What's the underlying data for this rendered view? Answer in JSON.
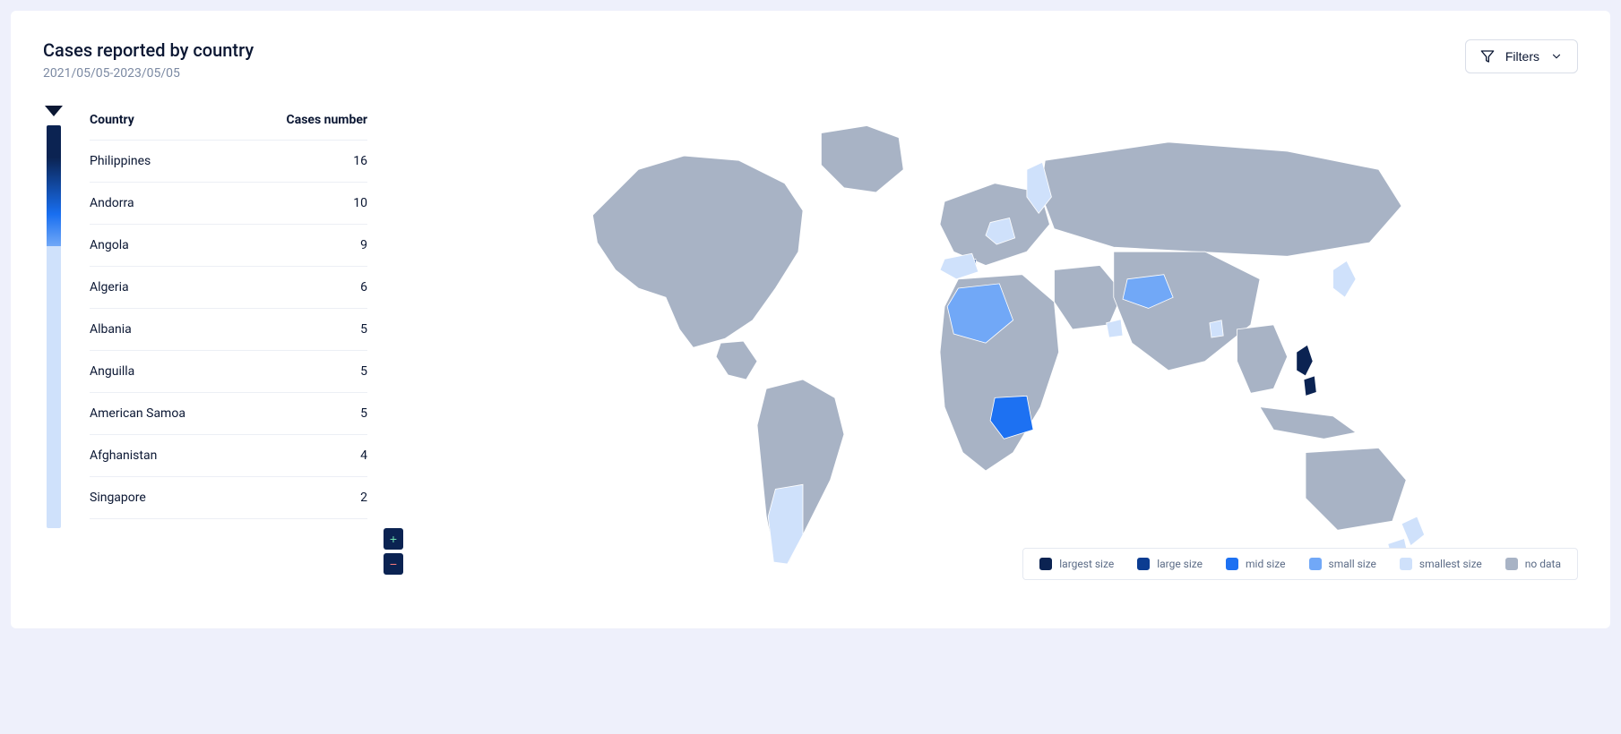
{
  "header": {
    "title": "Cases reported by country",
    "date_range": "2021/05/05-2023/05/05",
    "filters_label": "Filters"
  },
  "table": {
    "columns": {
      "country": "Country",
      "cases": "Cases number"
    },
    "rows": [
      {
        "country": "Philippines",
        "cases": 16
      },
      {
        "country": "Andorra",
        "cases": 10
      },
      {
        "country": "Angola",
        "cases": 9
      },
      {
        "country": "Algeria",
        "cases": 6
      },
      {
        "country": "Albania",
        "cases": 5
      },
      {
        "country": "Anguilla",
        "cases": 5
      },
      {
        "country": "American Samoa",
        "cases": 5
      },
      {
        "country": "Afghanistan",
        "cases": 4
      },
      {
        "country": "Singapore",
        "cases": 2
      }
    ]
  },
  "legend": {
    "items": [
      {
        "label": "largest size",
        "color": "#0b2352"
      },
      {
        "label": "large size",
        "color": "#0b3c91"
      },
      {
        "label": "mid size",
        "color": "#1d71f2"
      },
      {
        "label": "small size",
        "color": "#71a8f7"
      },
      {
        "label": "smallest size",
        "color": "#cfe1fb"
      },
      {
        "label": "no data",
        "color": "#a8b3c5"
      }
    ]
  },
  "gradient": {
    "stops": [
      "#0b2352",
      "#0b2352",
      "#186ef0",
      "#71a8f7",
      "#cfe1fb",
      "#cfe1fb"
    ],
    "positions": [
      0,
      8,
      22,
      30,
      30,
      100
    ]
  },
  "map": {
    "no_data_color": "#a8b3c5",
    "stroke_color": "#ffffff",
    "highlighted": [
      {
        "name": "Philippines",
        "color": "#0b2352"
      },
      {
        "name": "Angola",
        "color": "#1d71f2"
      },
      {
        "name": "Algeria",
        "color": "#71a8f7"
      },
      {
        "name": "Afghanistan",
        "color": "#71a8f7"
      },
      {
        "name": "Andorra",
        "color": "#0b3c91"
      },
      {
        "name": "Finland",
        "color": "#cfe1fb"
      },
      {
        "name": "Spain",
        "color": "#cfe1fb"
      },
      {
        "name": "Germany",
        "color": "#cfe1fb"
      },
      {
        "name": "Argentina",
        "color": "#cfe1fb"
      },
      {
        "name": "New Zealand",
        "color": "#cfe1fb"
      },
      {
        "name": "Bangladesh",
        "color": "#cfe1fb"
      },
      {
        "name": "Oman",
        "color": "#cfe1fb"
      },
      {
        "name": "Japan",
        "color": "#cfe1fb"
      }
    ]
  },
  "zoom": {
    "in": "+",
    "out": "−"
  }
}
